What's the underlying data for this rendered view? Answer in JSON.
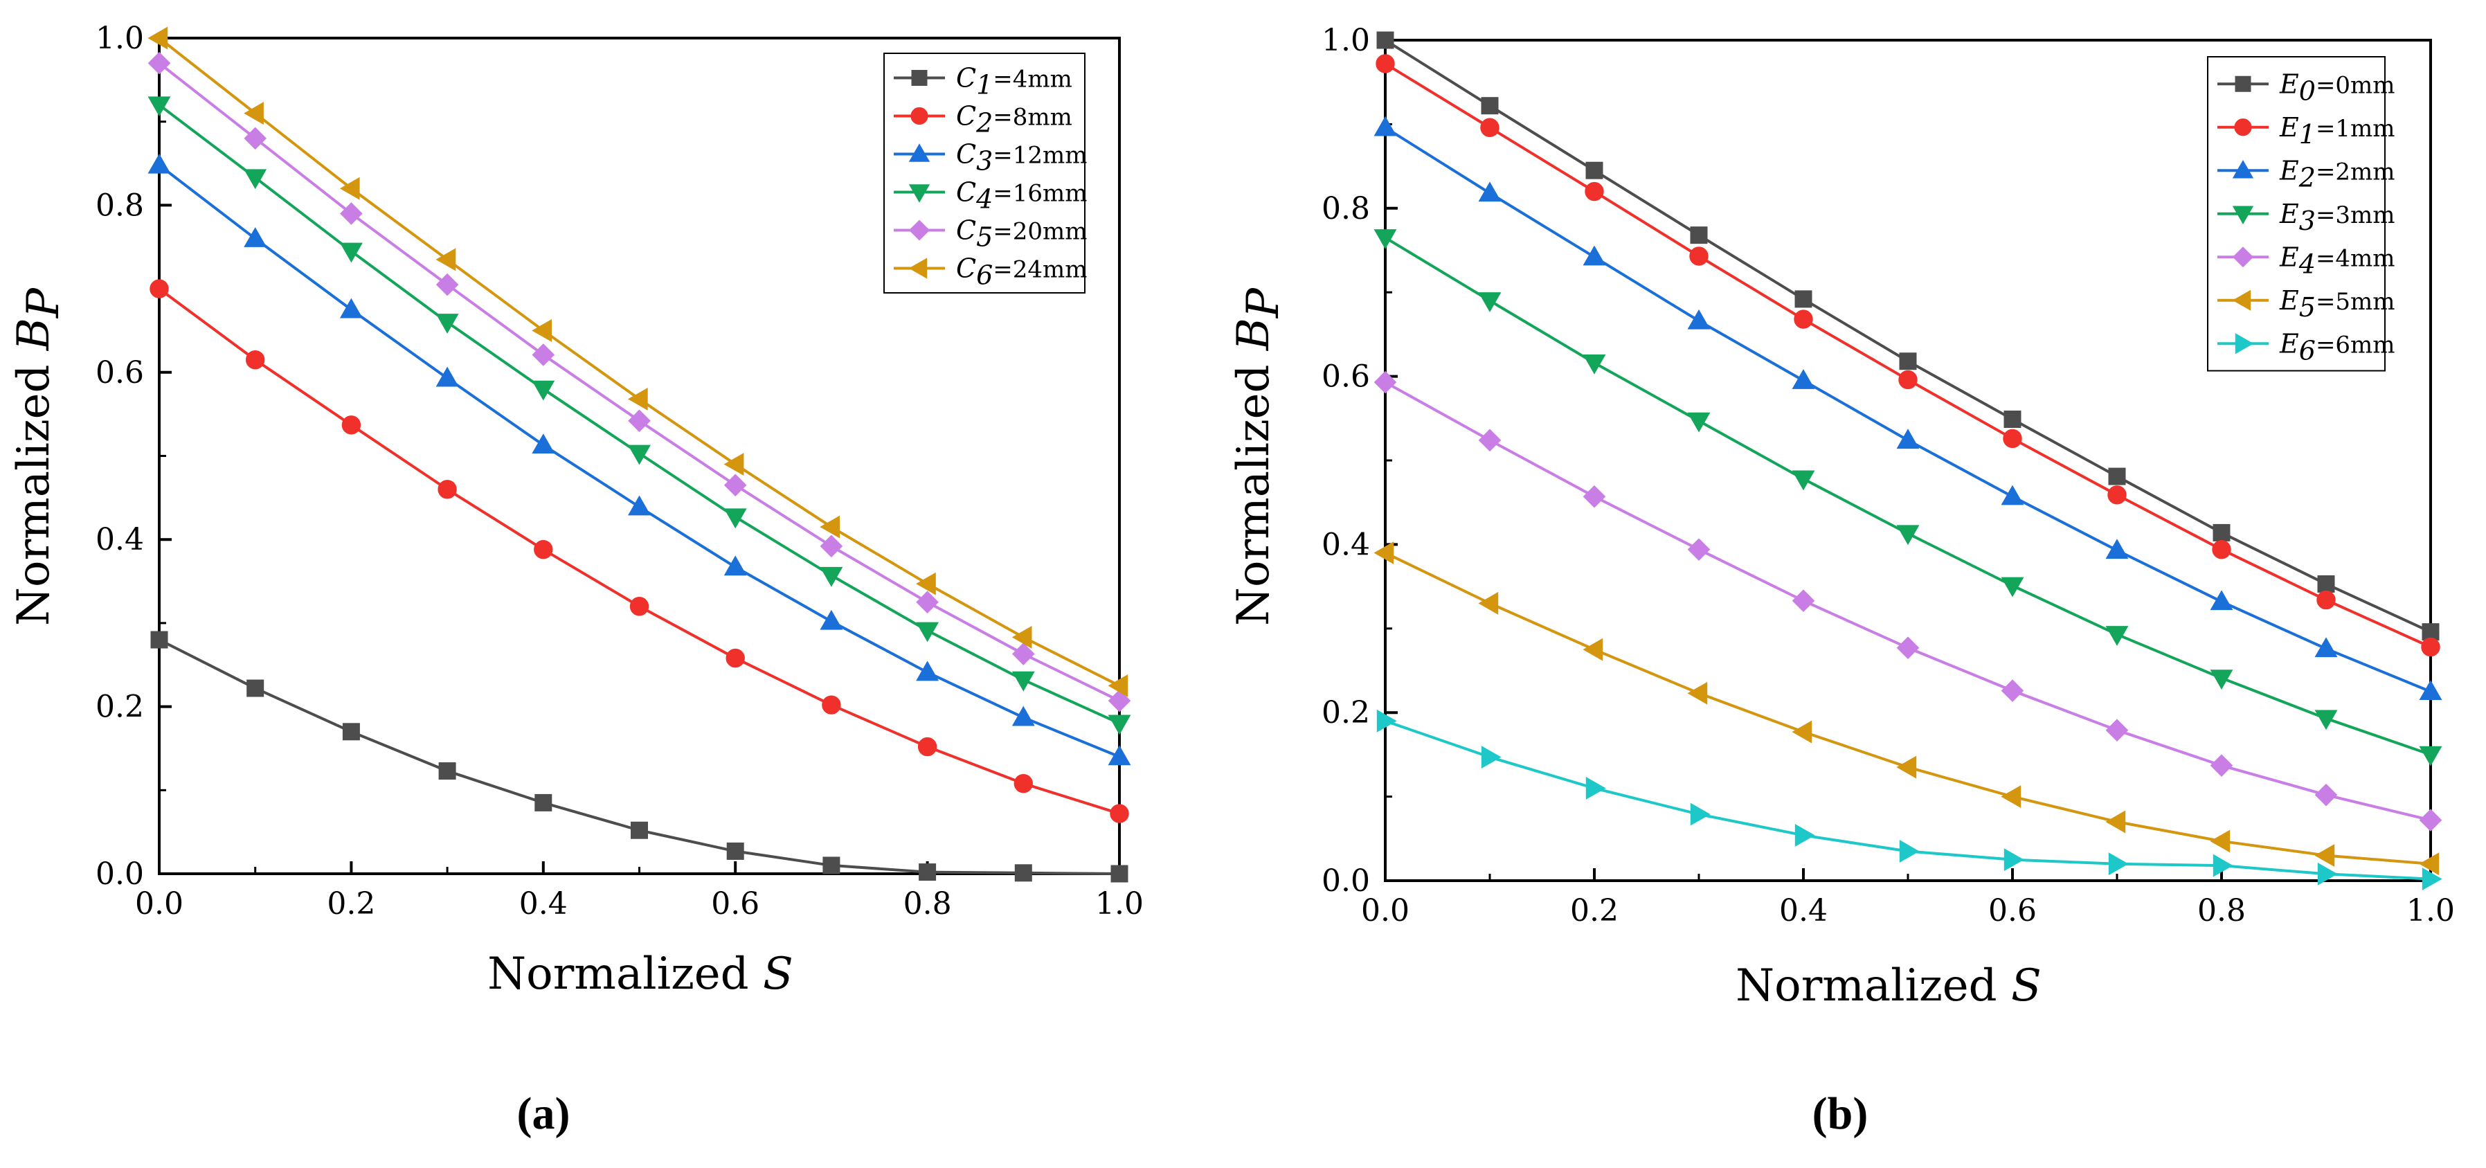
{
  "chart_data": [
    {
      "type": "line",
      "panel_label": "(a)",
      "xlabel_text": "Normalized ",
      "xlabel_var": "S",
      "ylabel_text": "Normalized ",
      "ylabel_var": "B",
      "ylabel_sub": "P",
      "xlim": [
        0,
        1
      ],
      "ylim": [
        0,
        1
      ],
      "xticks": [
        "0.0",
        "0.2",
        "0.4",
        "0.6",
        "0.8",
        "1.0"
      ],
      "yticks": [
        "0.0",
        "0.2",
        "0.4",
        "0.6",
        "0.8",
        "1.0"
      ],
      "legend_position": "top-right",
      "x": [
        0,
        0.1,
        0.2,
        0.3,
        0.4,
        0.5,
        0.6,
        0.7,
        0.8,
        0.9,
        1.0
      ],
      "series": [
        {
          "var": "C",
          "sub": "1",
          "value": "=4mm",
          "marker": "square",
          "color": "#4d4d4d",
          "values": [
            0.28,
            0.222,
            0.17,
            0.123,
            0.085,
            0.052,
            0.027,
            0.01,
            0.002,
            0.001,
            0.0
          ]
        },
        {
          "var": "C",
          "sub": "2",
          "value": "=8mm",
          "marker": "circle",
          "color": "#f0302a",
          "values": [
            0.7,
            0.615,
            0.537,
            0.46,
            0.388,
            0.32,
            0.258,
            0.202,
            0.152,
            0.108,
            0.072
          ]
        },
        {
          "var": "C",
          "sub": "3",
          "value": "=12mm",
          "marker": "triangle-up",
          "color": "#1a6fd8",
          "values": [
            0.848,
            0.76,
            0.675,
            0.593,
            0.513,
            0.439,
            0.367,
            0.302,
            0.241,
            0.187,
            0.14
          ]
        },
        {
          "var": "C",
          "sub": "4",
          "value": "=16mm",
          "marker": "triangle-down",
          "color": "#13a65a",
          "values": [
            0.92,
            0.833,
            0.745,
            0.66,
            0.58,
            0.503,
            0.427,
            0.357,
            0.291,
            0.232,
            0.18
          ]
        },
        {
          "var": "C",
          "sub": "5",
          "value": "=20mm",
          "marker": "diamond",
          "color": "#c97ee6",
          "values": [
            0.97,
            0.88,
            0.79,
            0.705,
            0.621,
            0.542,
            0.465,
            0.392,
            0.325,
            0.263,
            0.207
          ]
        },
        {
          "var": "C",
          "sub": "6",
          "value": "=24mm",
          "marker": "triangle-left",
          "color": "#d4960e",
          "values": [
            1.0,
            0.91,
            0.82,
            0.735,
            0.65,
            0.568,
            0.49,
            0.415,
            0.347,
            0.283,
            0.225
          ]
        }
      ]
    },
    {
      "type": "line",
      "panel_label": "(b)",
      "xlabel_text": "Normalized ",
      "xlabel_var": "S",
      "ylabel_text": "Normalized ",
      "ylabel_var": "B",
      "ylabel_sub": "P",
      "xlim": [
        0,
        1
      ],
      "ylim": [
        0,
        1
      ],
      "xticks": [
        "0.0",
        "0.2",
        "0.4",
        "0.6",
        "0.8",
        "1.0"
      ],
      "yticks": [
        "0.0",
        "0.2",
        "0.4",
        "0.6",
        "0.8",
        "1.0"
      ],
      "legend_position": "top-right",
      "x": [
        0,
        0.1,
        0.2,
        0.3,
        0.4,
        0.5,
        0.6,
        0.7,
        0.8,
        0.9,
        1.0
      ],
      "series": [
        {
          "var": "E",
          "sub": "0",
          "value": "=0mm",
          "marker": "square",
          "color": "#4d4d4d",
          "values": [
            1.0,
            0.922,
            0.845,
            0.768,
            0.692,
            0.618,
            0.549,
            0.481,
            0.414,
            0.353,
            0.296
          ]
        },
        {
          "var": "E",
          "sub": "1",
          "value": "=1mm",
          "marker": "circle",
          "color": "#f0302a",
          "values": [
            0.972,
            0.896,
            0.82,
            0.743,
            0.668,
            0.596,
            0.526,
            0.459,
            0.394,
            0.334,
            0.278
          ]
        },
        {
          "var": "E",
          "sub": "2",
          "value": "=2mm",
          "marker": "triangle-up",
          "color": "#1a6fd8",
          "values": [
            0.896,
            0.818,
            0.742,
            0.666,
            0.595,
            0.524,
            0.457,
            0.393,
            0.332,
            0.276,
            0.225
          ]
        },
        {
          "var": "E",
          "sub": "3",
          "value": "=3mm",
          "marker": "triangle-down",
          "color": "#13a65a",
          "values": [
            0.765,
            0.69,
            0.616,
            0.547,
            0.478,
            0.413,
            0.351,
            0.293,
            0.241,
            0.193,
            0.15
          ]
        },
        {
          "var": "E",
          "sub": "4",
          "value": "=4mm",
          "marker": "diamond",
          "color": "#c97ee6",
          "values": [
            0.593,
            0.524,
            0.457,
            0.394,
            0.333,
            0.277,
            0.226,
            0.179,
            0.137,
            0.102,
            0.072
          ]
        },
        {
          "var": "E",
          "sub": "5",
          "value": "=5mm",
          "marker": "triangle-left",
          "color": "#d4960e",
          "values": [
            0.39,
            0.33,
            0.275,
            0.223,
            0.177,
            0.135,
            0.1,
            0.07,
            0.047,
            0.03,
            0.02
          ]
        },
        {
          "var": "E",
          "sub": "6",
          "value": "=6mm",
          "marker": "triangle-right",
          "color": "#1ec8c8",
          "values": [
            0.19,
            0.147,
            0.11,
            0.079,
            0.054,
            0.035,
            0.025,
            0.02,
            0.018,
            0.008,
            0.002
          ]
        }
      ]
    }
  ]
}
